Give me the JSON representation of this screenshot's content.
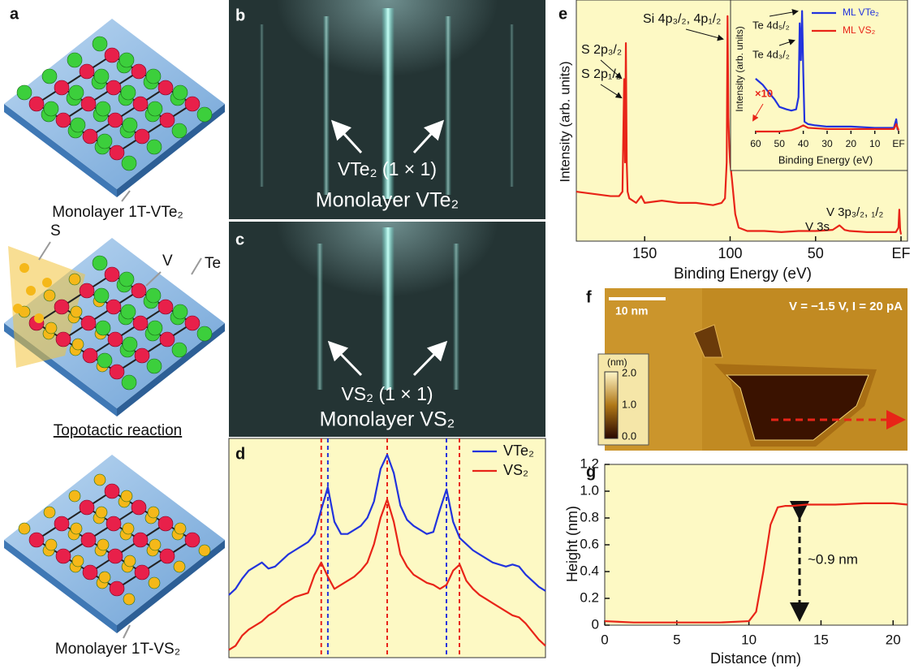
{
  "panel_labels": [
    "a",
    "b",
    "c",
    "d",
    "e",
    "f",
    "g"
  ],
  "panel_a": {
    "top_label": "Monolayer 1T-VTe₂",
    "atom_labels": [
      "S",
      "V",
      "Te"
    ],
    "reaction": "Topotactic reaction",
    "bottom_label": "Monolayer 1T-VS₂"
  },
  "panel_b": {
    "arrow_label": "VTe₂ (1 × 1)",
    "caption": "Monolayer VTe₂"
  },
  "panel_c": {
    "arrow_label": "VS₂ (1 × 1)",
    "caption": "Monolayer VS₂"
  },
  "panel_f": {
    "scale_bar": "10 nm",
    "conditions": "V = −1.5 V, I = 20 pA",
    "colorbar_unit": "(nm)",
    "colorbar_ticks": [
      "2.0",
      "1.0",
      "0.0"
    ]
  },
  "chart_data": [
    {
      "type": "line",
      "ylim": [
        0,
        1.05
      ],
      "series": [
        {
          "name": "VTe₂",
          "color": "#2233dd",
          "values": [
            0.3,
            0.33,
            0.38,
            0.42,
            0.44,
            0.46,
            0.43,
            0.44,
            0.47,
            0.5,
            0.52,
            0.54,
            0.56,
            0.6,
            0.72,
            0.83,
            0.66,
            0.6,
            0.6,
            0.62,
            0.64,
            0.68,
            0.76,
            0.92,
            0.99,
            0.9,
            0.74,
            0.67,
            0.64,
            0.62,
            0.6,
            0.61,
            0.72,
            0.82,
            0.66,
            0.58,
            0.55,
            0.52,
            0.5,
            0.48,
            0.46,
            0.45,
            0.44,
            0.45,
            0.44,
            0.4,
            0.37,
            0.34,
            0.32
          ]
        },
        {
          "name": "VS₂",
          "color": "#e82418",
          "values": [
            0.03,
            0.05,
            0.1,
            0.13,
            0.15,
            0.17,
            0.2,
            0.22,
            0.25,
            0.27,
            0.29,
            0.3,
            0.31,
            0.4,
            0.46,
            0.39,
            0.33,
            0.35,
            0.37,
            0.39,
            0.42,
            0.46,
            0.55,
            0.68,
            0.77,
            0.66,
            0.5,
            0.44,
            0.4,
            0.38,
            0.36,
            0.35,
            0.33,
            0.35,
            0.42,
            0.45,
            0.37,
            0.33,
            0.3,
            0.28,
            0.26,
            0.24,
            0.22,
            0.2,
            0.19,
            0.16,
            0.12,
            0.08,
            0.05
          ]
        }
      ]
    },
    {
      "type": "line",
      "xlabel": "Binding Energy (eV)",
      "ylabel": "Intensity (arb. units)",
      "x": [
        190,
        180,
        170,
        165,
        163,
        162,
        161.5,
        161,
        160.5,
        160,
        159,
        155,
        152,
        150,
        140,
        130,
        120,
        110,
        105,
        103,
        102,
        101.5,
        101,
        100.5,
        100,
        99,
        97,
        95,
        90,
        80,
        70,
        60,
        50,
        40,
        36,
        33,
        30,
        20,
        10,
        3,
        1.5,
        1,
        0.5,
        0
      ],
      "series": [
        {
          "color": "#e82418",
          "values": [
            0.22,
            0.21,
            0.2,
            0.2,
            0.22,
            0.72,
            0.35,
            0.88,
            0.35,
            0.22,
            0.19,
            0.17,
            0.2,
            0.17,
            0.18,
            0.17,
            0.17,
            0.16,
            0.17,
            0.19,
            0.35,
            1.0,
            0.55,
            0.42,
            0.35,
            0.28,
            0.12,
            0.06,
            0.045,
            0.045,
            0.04,
            0.045,
            0.045,
            0.05,
            0.07,
            0.05,
            0.045,
            0.04,
            0.04,
            0.04,
            0.06,
            0.14,
            0.05,
            0.03
          ]
        }
      ],
      "xlim": [
        190,
        0
      ],
      "xticks": [
        150,
        100,
        50,
        {
          "value": 0,
          "label": "EF"
        }
      ],
      "ylim": [
        0,
        1.05
      ],
      "annotations": [
        "S 2p₃/₂",
        "S 2p₁/₂",
        "Si 4p₃/₂, 4p₁/₂",
        "V 3p₃/₂, ₁/₂",
        "V 3s"
      ]
    },
    {
      "type": "line",
      "xlabel": "Binding Energy (eV)",
      "ylabel": "Intensity (arb. units)",
      "series": [
        {
          "name": "ML VTe₂",
          "color": "#2233dd",
          "x": [
            60,
            57,
            55,
            52,
            50,
            47,
            45,
            43,
            42,
            41.5,
            41,
            40.5,
            40,
            39.5,
            38,
            35,
            30,
            20,
            10,
            5,
            2,
            1,
            0.5,
            0
          ],
          "values": [
            0.45,
            0.4,
            0.35,
            0.28,
            0.22,
            0.2,
            0.19,
            0.2,
            0.3,
            0.9,
            0.6,
            1.0,
            0.5,
            0.1,
            0.08,
            0.07,
            0.06,
            0.06,
            0.05,
            0.05,
            0.05,
            0.12,
            0.04,
            0.03
          ]
        },
        {
          "name": "ML VS₂",
          "color": "#e82418",
          "x": [
            60,
            50,
            45,
            42,
            40,
            38,
            30,
            20,
            10,
            5,
            2,
            1,
            0
          ],
          "values": [
            0.02,
            0.02,
            0.03,
            0.05,
            0.07,
            0.05,
            0.04,
            0.04,
            0.04,
            0.04,
            0.04,
            0.08,
            0.03
          ]
        }
      ],
      "xlim": [
        62,
        -1
      ],
      "xticks": [
        60,
        50,
        40,
        30,
        20,
        10,
        {
          "value": 0,
          "label": "EF"
        }
      ],
      "ylim": [
        0,
        1.05
      ],
      "annotations": [
        "Te 4d₅/₂",
        "Te 4d₃/₂",
        "×10"
      ]
    },
    {
      "type": "line",
      "xlabel": "Distance (nm)",
      "ylabel": "Height (nm)",
      "x": [
        0,
        2,
        4,
        6,
        8,
        10,
        10.5,
        11,
        11.5,
        12,
        12.5,
        13,
        14,
        16,
        18,
        20,
        21
      ],
      "series": [
        {
          "color": "#e82418",
          "values": [
            0.03,
            0.02,
            0.02,
            0.02,
            0.02,
            0.03,
            0.1,
            0.4,
            0.75,
            0.88,
            0.89,
            0.89,
            0.9,
            0.9,
            0.91,
            0.91,
            0.9
          ]
        }
      ],
      "xlim": [
        0,
        21
      ],
      "xticks": [
        0,
        5,
        10,
        15,
        20
      ],
      "ylim": [
        0,
        1.2
      ],
      "yticks": [
        0,
        0.2,
        0.4,
        0.6,
        0.8,
        {
          "value": 1,
          "label": "1.0"
        },
        1.2
      ],
      "annotations": [
        "~0.9 nm"
      ]
    }
  ]
}
